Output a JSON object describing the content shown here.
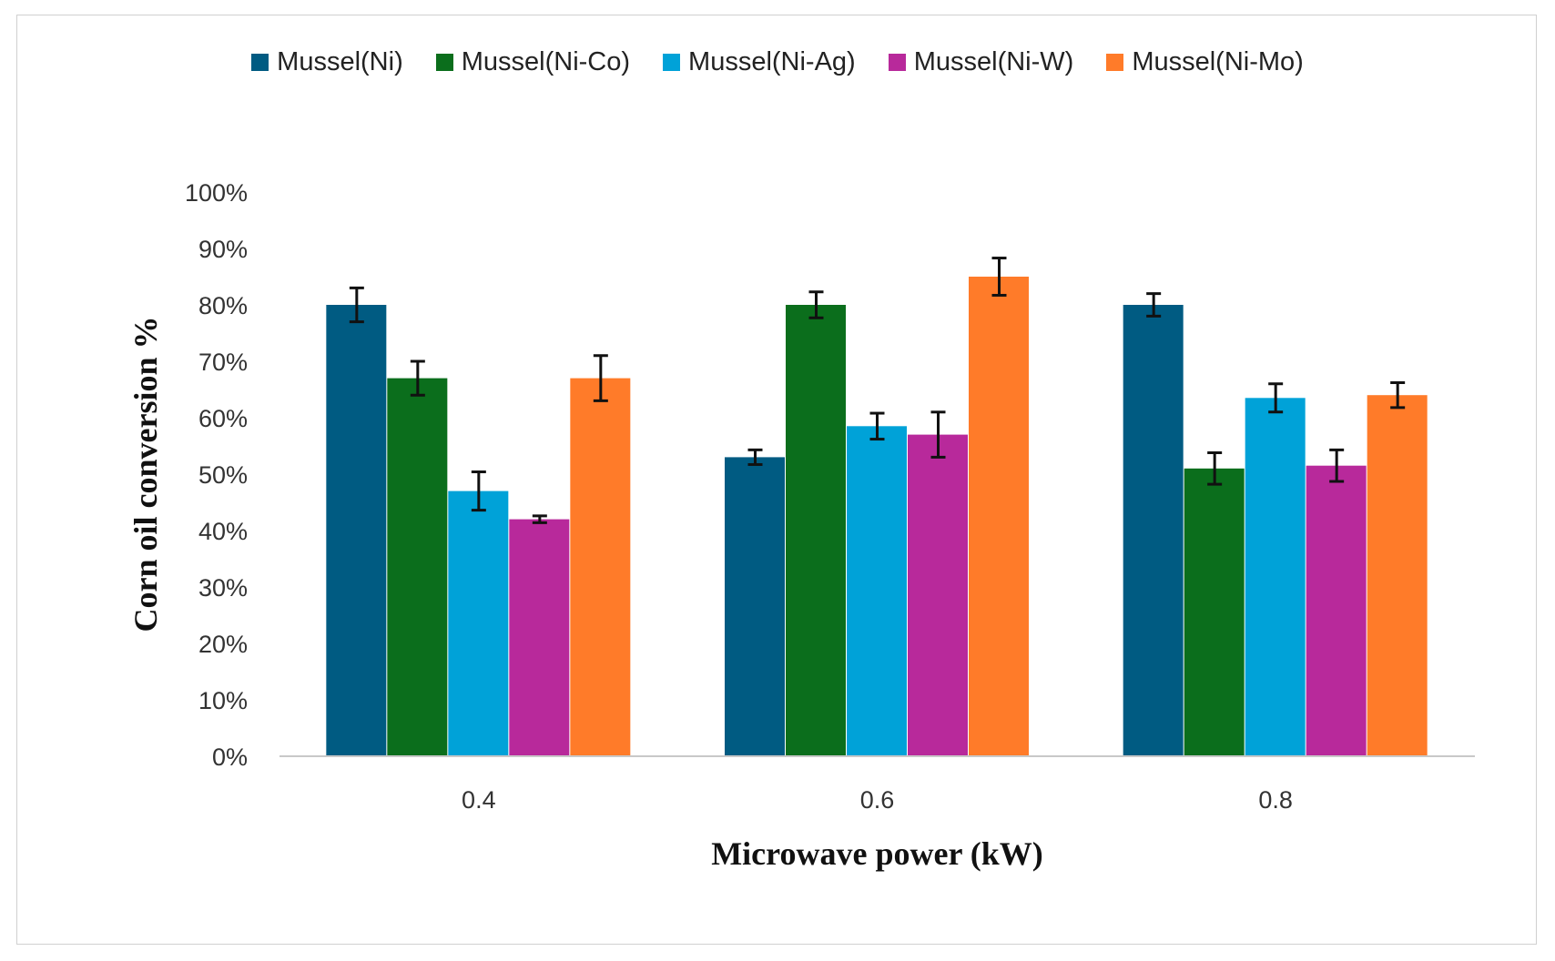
{
  "chart_data": {
    "type": "bar",
    "title": "",
    "xlabel": "Microwave power (kW)",
    "ylabel": "Corn oil conversion %",
    "categories": [
      "0.4",
      "0.6",
      "0.8"
    ],
    "ylim": [
      0,
      100
    ],
    "yticks": [
      0,
      10,
      20,
      30,
      40,
      50,
      60,
      70,
      80,
      90,
      100
    ],
    "ytick_labels": [
      "0%",
      "10%",
      "20%",
      "30%",
      "40%",
      "50%",
      "60%",
      "70%",
      "80%",
      "90%",
      "100%"
    ],
    "grid": false,
    "legend_position": "top-center",
    "series": [
      {
        "name": "Mussel(Ni)",
        "color": "#005b82",
        "values": [
          80,
          53,
          80
        ],
        "errors": [
          3,
          1.3,
          2
        ]
      },
      {
        "name": "Mussel(Ni-Co)",
        "color": "#0b6e1c",
        "values": [
          67,
          80,
          51
        ],
        "errors": [
          3,
          2.3,
          2.8
        ]
      },
      {
        "name": "Mussel(Ni-Ag)",
        "color": "#00a2d8",
        "values": [
          47,
          58.5,
          63.5
        ],
        "errors": [
          3.4,
          2.3,
          2.5
        ]
      },
      {
        "name": "Mussel(Ni-W)",
        "color": "#b8299b",
        "values": [
          42,
          57,
          51.5
        ],
        "errors": [
          0.6,
          4,
          2.8
        ]
      },
      {
        "name": "Mussel(Ni-Mo)",
        "color": "#ff7b29",
        "values": [
          67,
          85,
          64
        ],
        "errors": [
          4,
          3.3,
          2.2
        ]
      }
    ]
  }
}
